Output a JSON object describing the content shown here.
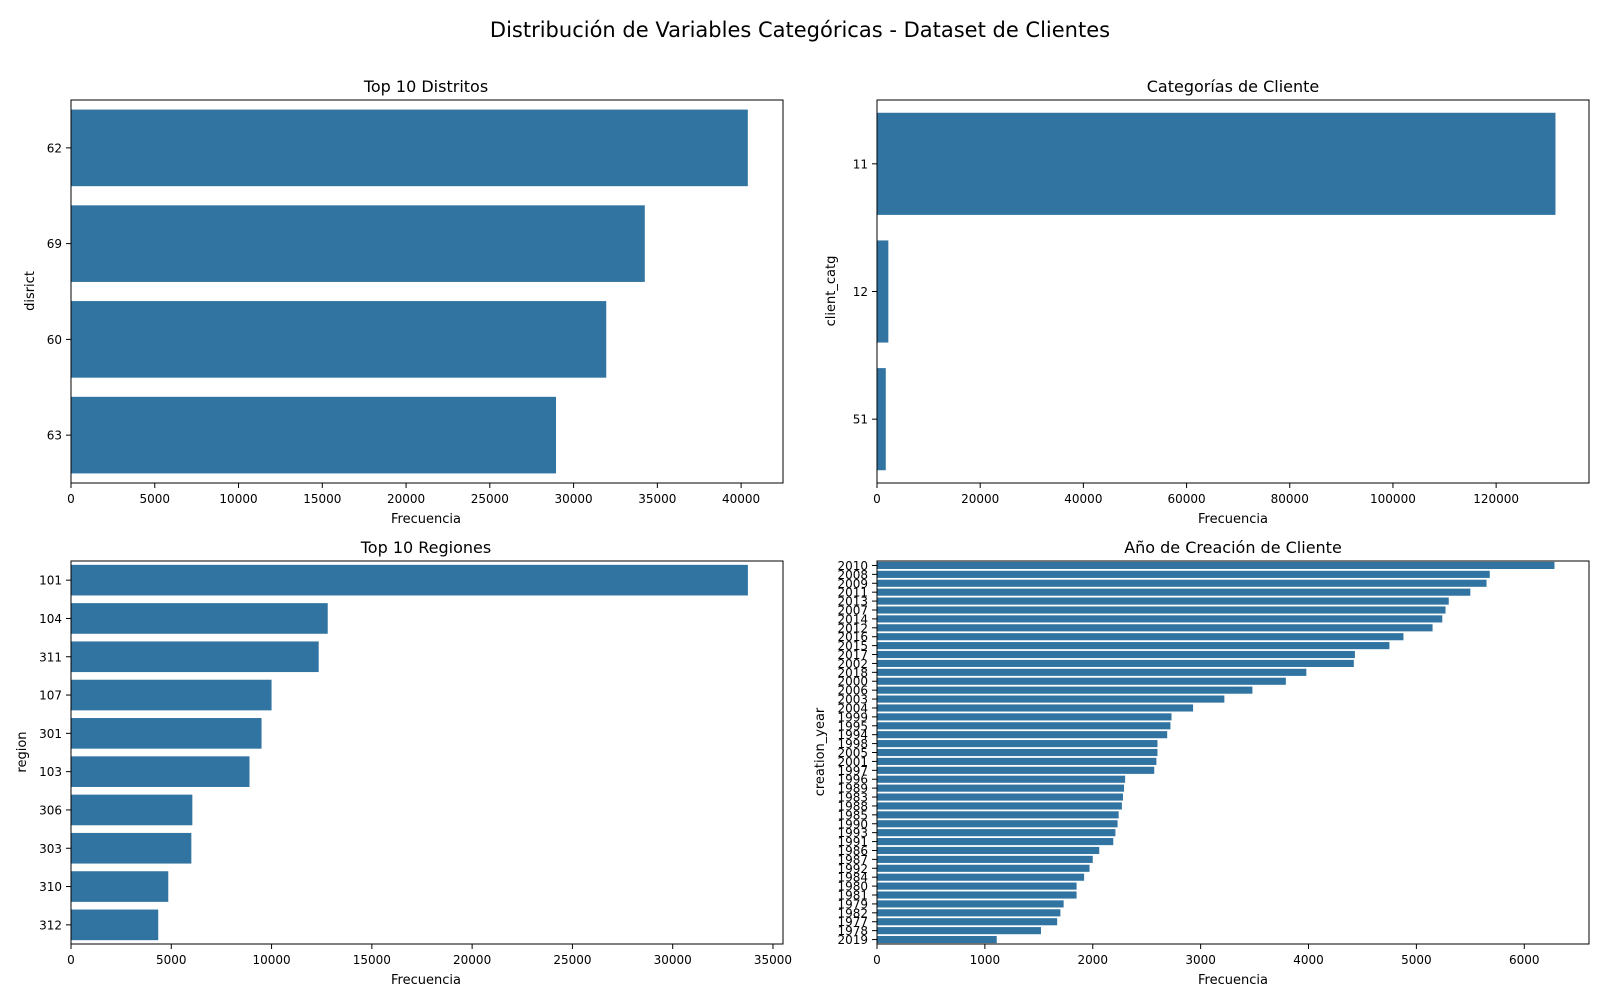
{
  "figure_title": "Distribución de Variables Categóricas - Dataset de Clientes",
  "bar_color": "#3274a1",
  "chart_data": [
    {
      "type": "bar",
      "orientation": "horizontal",
      "title": "Top 10 Distritos",
      "xlabel": "Frecuencia",
      "ylabel": "disrict",
      "categories": [
        "62",
        "69",
        "60",
        "63"
      ],
      "values": [
        40400,
        34250,
        31950,
        28950
      ],
      "xlim": [
        0,
        42500
      ],
      "xticks": [
        0,
        5000,
        10000,
        15000,
        20000,
        25000,
        30000,
        35000,
        40000
      ]
    },
    {
      "type": "bar",
      "orientation": "horizontal",
      "title": "Categorías de Cliente",
      "xlabel": "Frecuencia",
      "ylabel": "client_catg",
      "categories": [
        "11",
        "12",
        "51"
      ],
      "values": [
        131500,
        2200,
        1700
      ],
      "xlim": [
        0,
        138000
      ],
      "xticks": [
        0,
        20000,
        40000,
        60000,
        80000,
        100000,
        120000
      ]
    },
    {
      "type": "bar",
      "orientation": "horizontal",
      "title": "Top 10 Regiones",
      "xlabel": "Frecuencia",
      "ylabel": "region",
      "categories": [
        "101",
        "104",
        "311",
        "107",
        "301",
        "103",
        "306",
        "303",
        "310",
        "312"
      ],
      "values": [
        33750,
        12800,
        12350,
        10000,
        9500,
        8900,
        6050,
        6000,
        4850,
        4350
      ],
      "xlim": [
        0,
        35500
      ],
      "xticks": [
        0,
        5000,
        10000,
        15000,
        20000,
        25000,
        30000,
        35000
      ]
    },
    {
      "type": "bar",
      "orientation": "horizontal",
      "title": "Año de Creación de Cliente",
      "xlabel": "Frecuencia",
      "ylabel": "creation_year",
      "categories": [
        "2010",
        "2008",
        "2009",
        "2011",
        "2013",
        "2007",
        "2014",
        "2012",
        "2016",
        "2015",
        "2017",
        "2002",
        "2018",
        "2000",
        "2006",
        "2003",
        "2004",
        "1999",
        "1995",
        "1994",
        "1998",
        "2005",
        "2001",
        "1997",
        "1996",
        "1989",
        "1983",
        "1988",
        "1985",
        "1990",
        "1993",
        "1991",
        "1986",
        "1987",
        "1992",
        "1984",
        "1980",
        "1981",
        "1979",
        "1982",
        "1977",
        "1978",
        "2019"
      ],
      "values": [
        6280,
        5680,
        5650,
        5500,
        5300,
        5270,
        5240,
        5150,
        4880,
        4750,
        4430,
        4420,
        3980,
        3790,
        3480,
        3220,
        2930,
        2730,
        2720,
        2690,
        2600,
        2600,
        2590,
        2570,
        2300,
        2290,
        2280,
        2270,
        2240,
        2230,
        2210,
        2190,
        2060,
        2000,
        1970,
        1920,
        1850,
        1850,
        1730,
        1700,
        1670,
        1520,
        1110
      ],
      "xlim": [
        0,
        6600
      ],
      "xticks": [
        0,
        1000,
        2000,
        3000,
        4000,
        5000,
        6000
      ]
    }
  ]
}
